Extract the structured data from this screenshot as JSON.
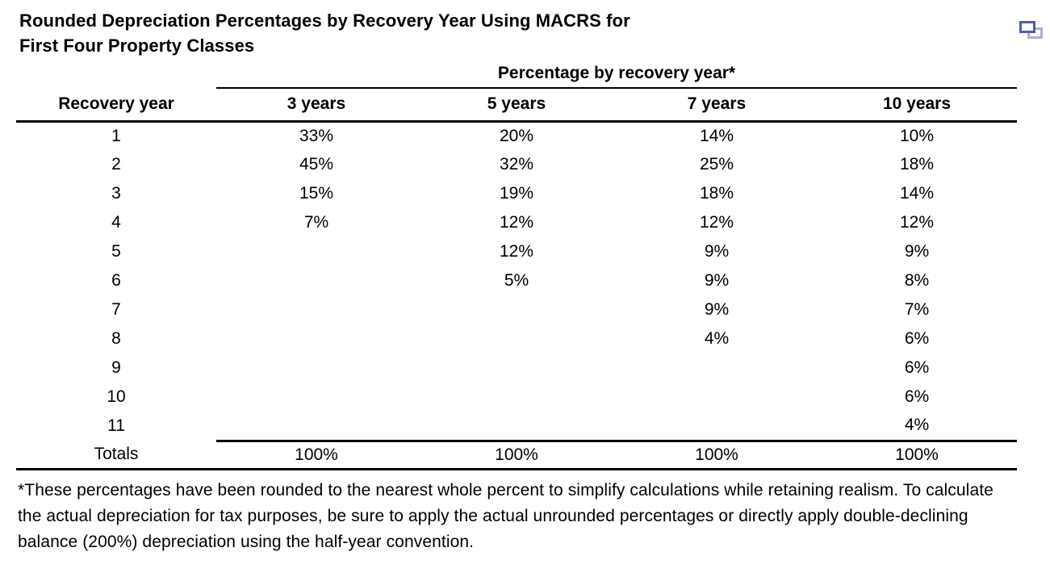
{
  "title": {
    "line1": "Rounded Depreciation Percentages by Recovery Year Using MACRS for",
    "line2": "First Four Property Classes"
  },
  "icon": {
    "name": "duplicate-window-icon",
    "front_color": "#4e5ea6",
    "back_color": "#a9b2ce"
  },
  "table": {
    "span_header": "Percentage by recovery year*",
    "columns": [
      "Recovery year",
      "3 years",
      "5 years",
      "7 years",
      "10 years"
    ],
    "rows": [
      [
        "1",
        "33%",
        "20%",
        "14%",
        "10%"
      ],
      [
        "2",
        "45%",
        "32%",
        "25%",
        "18%"
      ],
      [
        "3",
        "15%",
        "19%",
        "18%",
        "14%"
      ],
      [
        "4",
        "7%",
        "12%",
        "12%",
        "12%"
      ],
      [
        "5",
        "",
        "12%",
        "9%",
        "9%"
      ],
      [
        "6",
        "",
        "5%",
        "9%",
        "8%"
      ],
      [
        "7",
        "",
        "",
        "9%",
        "7%"
      ],
      [
        "8",
        "",
        "",
        "4%",
        "6%"
      ],
      [
        "9",
        "",
        "",
        "",
        "6%"
      ],
      [
        "10",
        "",
        "",
        "",
        "6%"
      ],
      [
        "11",
        "",
        "",
        "",
        "4%"
      ]
    ],
    "totals": [
      "Totals",
      "100%",
      "100%",
      "100%",
      "100%"
    ]
  },
  "footnote": "*These percentages have been rounded to the nearest whole percent to simplify calculations while retaining realism. To calculate the actual depreciation for tax purposes, be sure to apply the actual unrounded percentages or directly apply double-declining balance (200%) depreciation using the half-year convention.",
  "colors": {
    "background": "#ffffff",
    "text": "#000000",
    "rule": "#000000"
  }
}
